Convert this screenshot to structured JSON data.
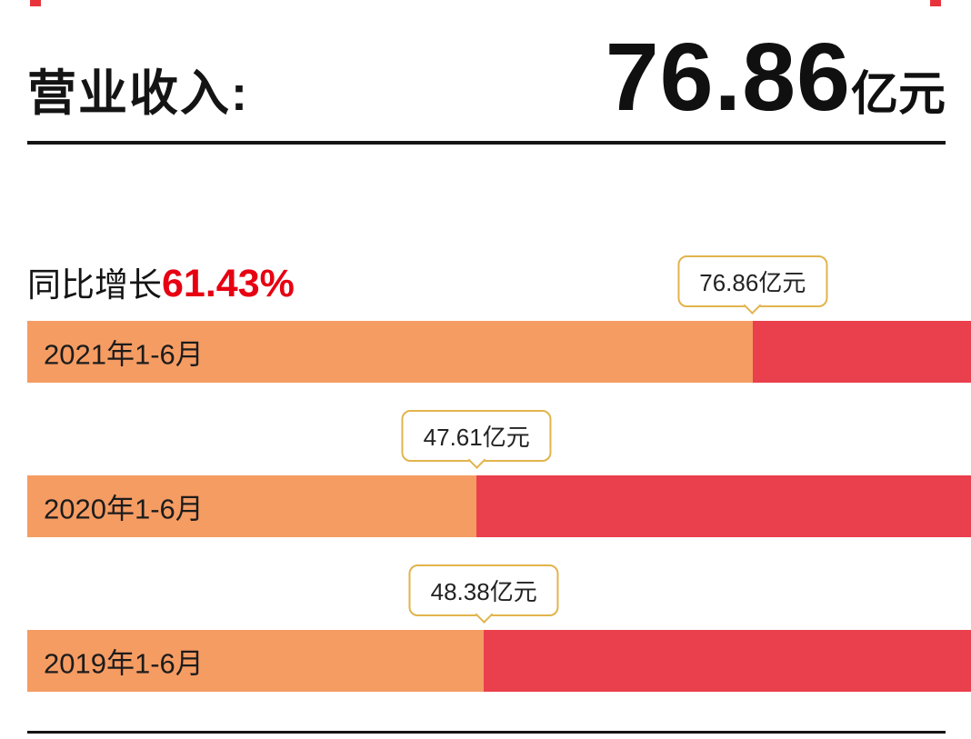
{
  "header": {
    "title": "营业收入:",
    "value": "76.86",
    "unit": "亿元"
  },
  "growth": {
    "label": "同比增长",
    "value": "61.43%"
  },
  "chart_data": {
    "type": "bar",
    "orientation": "horizontal",
    "categories": [
      "2021年1-6月",
      "2020年1-6月",
      "2019年1-6月"
    ],
    "values": [
      76.86,
      47.61,
      48.38
    ],
    "value_labels": [
      "76.86亿元",
      "47.61亿元",
      "48.38亿元"
    ],
    "unit": "亿元",
    "xlim": [
      0,
      100
    ],
    "grid": false,
    "legend": "none",
    "colors": {
      "bar_fill": "#F59C63",
      "bar_remainder": "#EA3F4C",
      "callout_border": "#E2B44C",
      "growth_accent": "#E60012",
      "text": "#141414"
    }
  }
}
